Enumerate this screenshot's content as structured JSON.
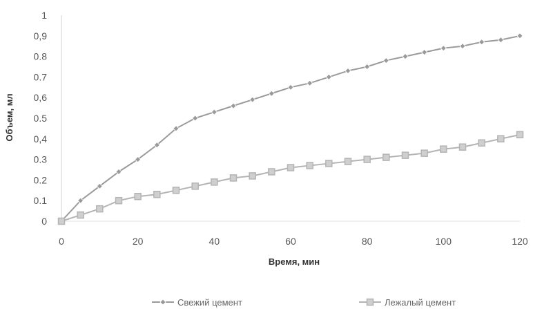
{
  "chart_data": {
    "type": "line",
    "title": "",
    "xlabel": "Время, мин",
    "ylabel": "Объем, мл",
    "xlim": [
      0,
      120
    ],
    "ylim": [
      0,
      1
    ],
    "x_ticks": [
      0,
      20,
      40,
      60,
      80,
      100,
      120
    ],
    "y_ticks": [
      0,
      0.1,
      0.2,
      0.3,
      0.4,
      0.5,
      0.6,
      0.7,
      0.8,
      0.9,
      1
    ],
    "y_tick_labels": [
      "0",
      "0.1",
      "0.2",
      "0.3",
      "0,4",
      "0.5",
      "0,6",
      "0.7",
      "0.8",
      "0,9",
      "1"
    ],
    "grid": false,
    "legend_position": "bottom",
    "series": [
      {
        "name": "Свежий цемент",
        "color": "#9a9a9a",
        "marker": "diamond",
        "x": [
          0,
          5,
          10,
          15,
          20,
          25,
          30,
          35,
          40,
          45,
          50,
          55,
          60,
          65,
          70,
          75,
          80,
          85,
          90,
          95,
          100,
          105,
          110,
          115,
          120
        ],
        "values": [
          0,
          0.1,
          0.17,
          0.24,
          0.3,
          0.37,
          0.45,
          0.5,
          0.53,
          0.56,
          0.59,
          0.62,
          0.65,
          0.67,
          0.7,
          0.73,
          0.75,
          0.78,
          0.8,
          0.82,
          0.84,
          0.85,
          0.87,
          0.88,
          0.9
        ]
      },
      {
        "name": "Лежалый цемент",
        "color": "#b4b4b4",
        "marker": "square",
        "x": [
          0,
          5,
          10,
          15,
          20,
          25,
          30,
          35,
          40,
          45,
          50,
          55,
          60,
          65,
          70,
          75,
          80,
          85,
          90,
          95,
          100,
          105,
          110,
          115,
          120
        ],
        "values": [
          0,
          0.03,
          0.06,
          0.1,
          0.12,
          0.13,
          0.15,
          0.17,
          0.19,
          0.21,
          0.22,
          0.24,
          0.26,
          0.27,
          0.28,
          0.29,
          0.3,
          0.31,
          0.32,
          0.33,
          0.35,
          0.36,
          0.38,
          0.4,
          0.42
        ]
      }
    ]
  }
}
